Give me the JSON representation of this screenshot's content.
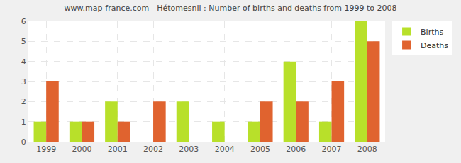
{
  "chart_data": {
    "type": "bar",
    "title": "www.map-france.com - Hétomesnil : Number of births and deaths from 1999 to 2008",
    "categories": [
      "1999",
      "2000",
      "2001",
      "2002",
      "2003",
      "2004",
      "2005",
      "2006",
      "2007",
      "2008"
    ],
    "series": [
      {
        "name": "Births",
        "color": "#b8e02a",
        "values": [
          1,
          1,
          2,
          0,
          2,
          1,
          1,
          4,
          1,
          6
        ]
      },
      {
        "name": "Deaths",
        "color": "#e0632f",
        "values": [
          3,
          1,
          1,
          2,
          0,
          0,
          2,
          2,
          3,
          5
        ]
      }
    ],
    "ylim": [
      0,
      6
    ],
    "yticks": [
      0,
      1,
      2,
      3,
      4,
      5,
      6
    ],
    "grid": true,
    "legend": "top right"
  }
}
